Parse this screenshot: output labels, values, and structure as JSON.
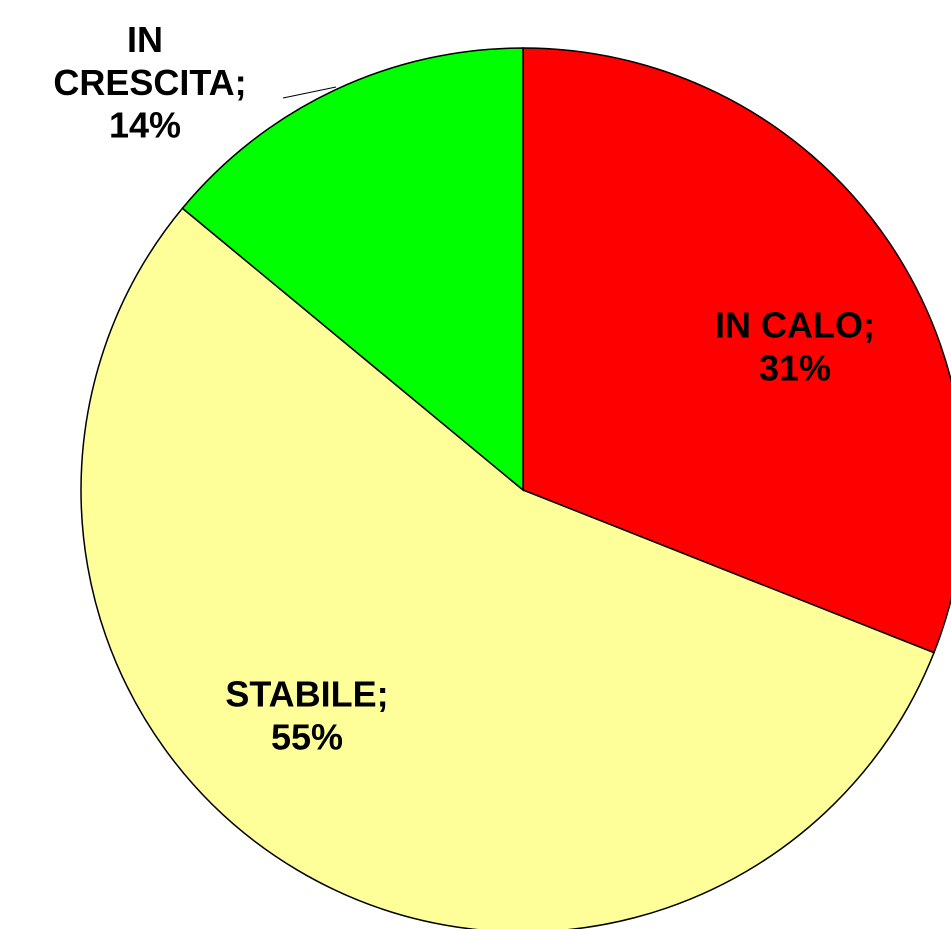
{
  "chart_data": {
    "type": "pie",
    "categories": [
      "IN CALO;",
      "STABILE;",
      "IN CRESCITA;"
    ],
    "values": [
      31,
      55,
      14
    ],
    "value_labels": [
      "31%",
      "55%",
      "14%"
    ],
    "colors": [
      "#ff0000",
      "#ffff99",
      "#00ff00"
    ]
  }
}
